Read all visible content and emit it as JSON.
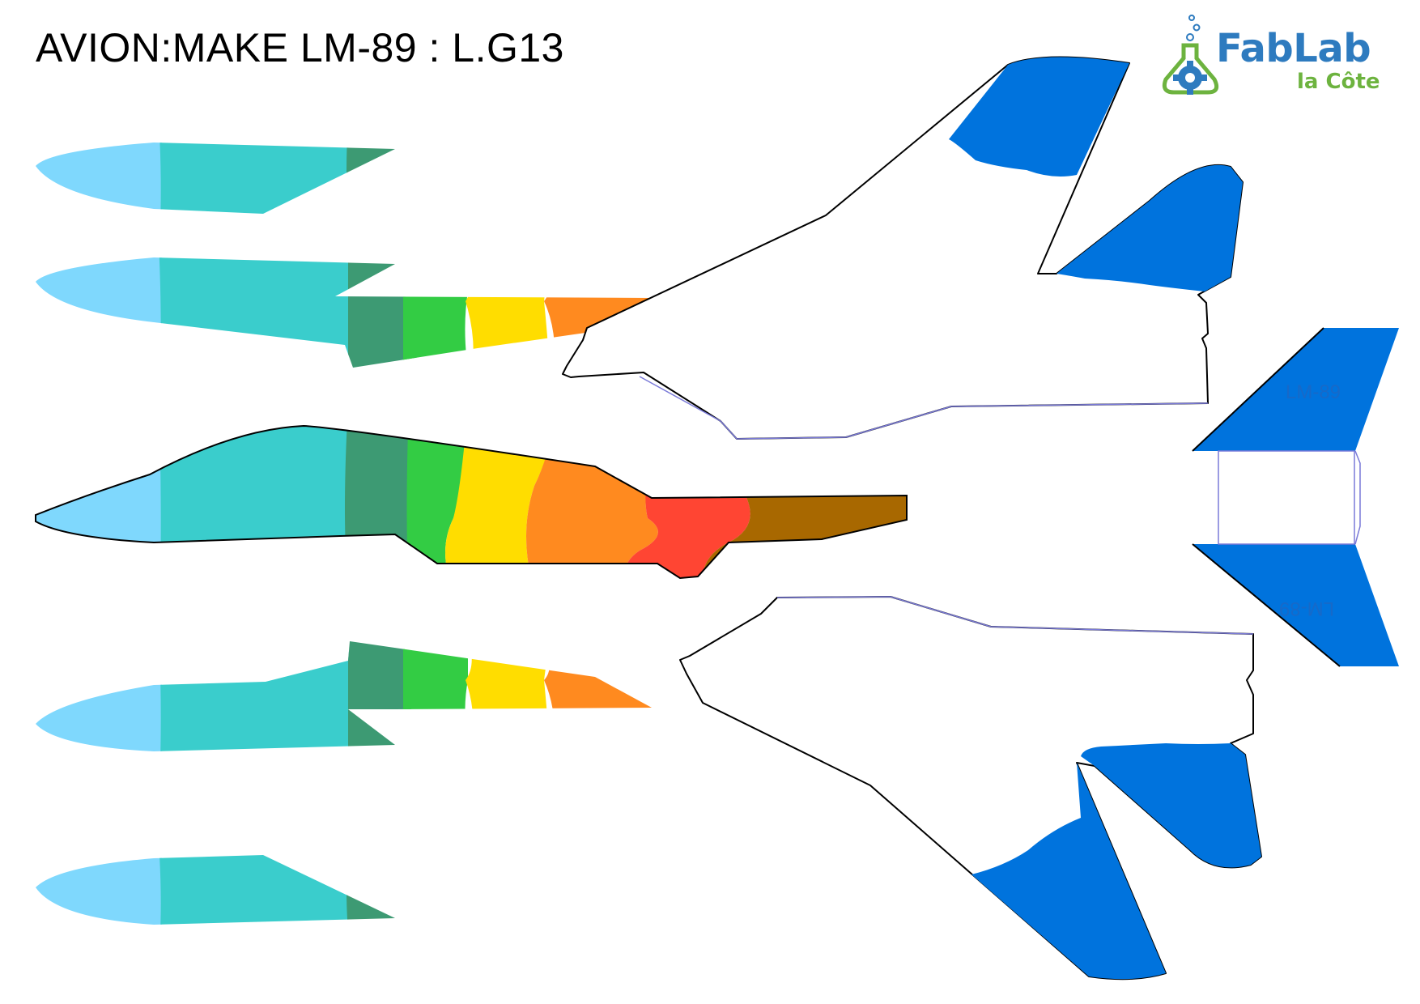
{
  "title": "AVION:MAKE LM-89 : L.G13",
  "logo": {
    "fab": "FabLab",
    "cote": "la Côte",
    "icon": "flask-gear-icon",
    "colors": {
      "blue": "#2e7bbf",
      "green": "#6db33f"
    }
  },
  "tail_marking_top": "LM-89",
  "tail_marking_bottom": "LM-89",
  "colors": {
    "nose": "#7fd8fd",
    "teal": "#3acdcc",
    "dark_green": "#3d9a73",
    "green": "#33cc44",
    "yellow": "#ffdd00",
    "orange": "#ff8a1f",
    "red": "#ff4533",
    "brown": "#a86800",
    "wing_blue": "#0073dd",
    "outline": "#000000"
  }
}
